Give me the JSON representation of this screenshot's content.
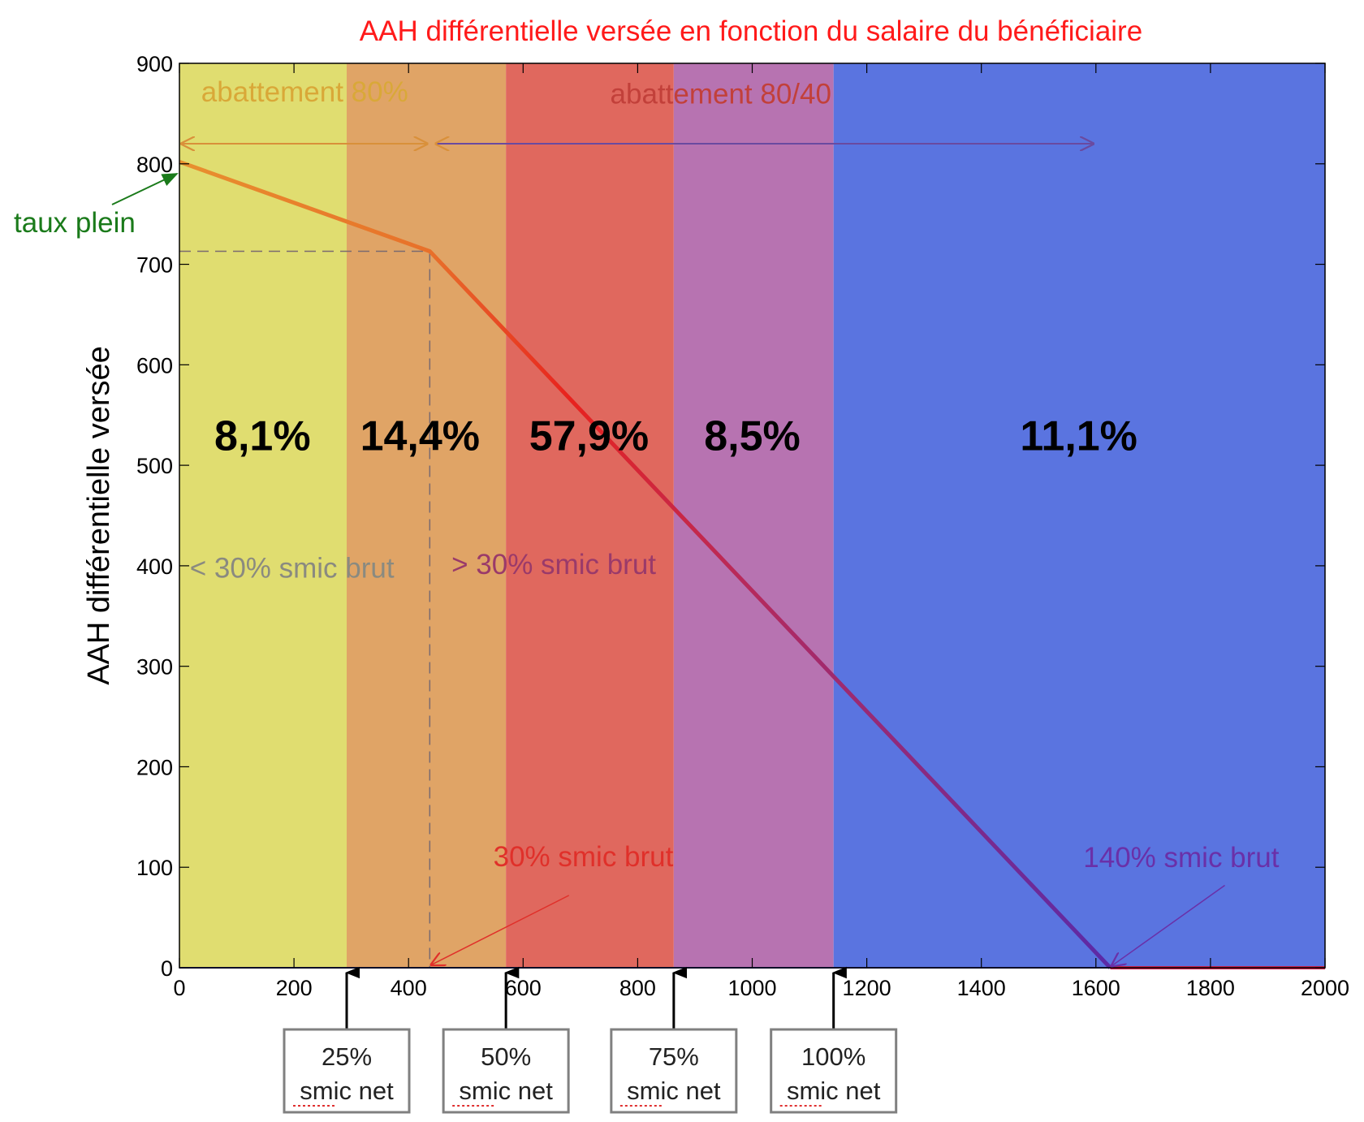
{
  "chart_data": {
    "type": "line",
    "title": "AAH différentielle versée en fonction du salaire du bénéficiaire",
    "ylabel": "AAH différentielle versée",
    "xlabel": "",
    "xlim": [
      0,
      2000
    ],
    "ylim": [
      0,
      900
    ],
    "x_ticks": [
      0,
      200,
      400,
      600,
      800,
      1000,
      1200,
      1400,
      1600,
      1800,
      2000
    ],
    "y_ticks": [
      0,
      100,
      200,
      300,
      400,
      500,
      600,
      700,
      800,
      900
    ],
    "grid": false,
    "colors": {
      "title": "#ff1a1a",
      "line_start": "#e8902e",
      "line_mid": "#e8221e",
      "line_end": "#5a2aa8",
      "taux_plein": "#1a7a1a"
    },
    "bands": [
      {
        "x0": 0,
        "x1": 292,
        "color": "#e0dd70",
        "label": "8,1%",
        "label_x": 145
      },
      {
        "x0": 292,
        "x1": 570,
        "color": "#e0a466",
        "label": "14,4%",
        "label_x": 420
      },
      {
        "x0": 570,
        "x1": 863,
        "color": "#e0685e",
        "label": "57,9%",
        "label_x": 715
      },
      {
        "x0": 863,
        "x1": 1142,
        "color": "#b773b1",
        "label": "8,5%",
        "label_x": 1000
      },
      {
        "x0": 1142,
        "x1": 2000,
        "color": "#5a74e0",
        "label": "11,1%",
        "label_x": 1570
      }
    ],
    "series": [
      {
        "x": [
          0,
          437,
          1625,
          2000
        ],
        "y": [
          802,
          713,
          0,
          0
        ]
      }
    ],
    "reference_lines": {
      "y_value": 713,
      "x_value": 437
    },
    "annotations": {
      "abattement_80": "abattement 80%",
      "abattement_80_40": "abattement 80/40",
      "taux_plein": "taux plein",
      "moins_30": "< 30% smic brut",
      "plus_30": "> 30% smic brut",
      "smic_30": "30% smic brut",
      "smic_140": "140% smic brut"
    },
    "smic_boxes": [
      {
        "x": 292,
        "pct": "25%",
        "label": "smic net"
      },
      {
        "x": 570,
        "pct": "50%",
        "label": "smic net"
      },
      {
        "x": 863,
        "pct": "75%",
        "label": "smic net"
      },
      {
        "x": 1142,
        "pct": "100%",
        "label": "smic net"
      }
    ]
  }
}
